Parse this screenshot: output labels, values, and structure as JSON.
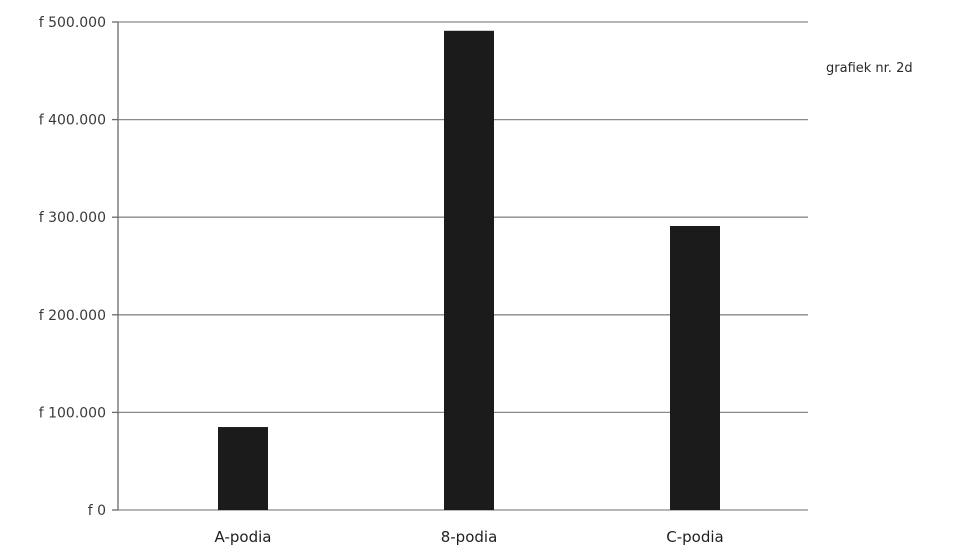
{
  "note": "grafiek nr. 2d",
  "chart_data": {
    "type": "bar",
    "categories": [
      "A-podia",
      "8-podia",
      "C-podia"
    ],
    "values": [
      85000,
      491000,
      291000
    ],
    "ylim": [
      0,
      500000
    ],
    "yticks": [
      0,
      100000,
      200000,
      300000,
      400000,
      500000
    ],
    "ytick_labels": [
      "f 0",
      "f 100.000",
      "f 200.000",
      "f 300.000",
      "f 400.000",
      "f 500.000"
    ],
    "grid": true,
    "bar_color": "#1b1b1b",
    "title": "",
    "xlabel": "",
    "ylabel": ""
  }
}
